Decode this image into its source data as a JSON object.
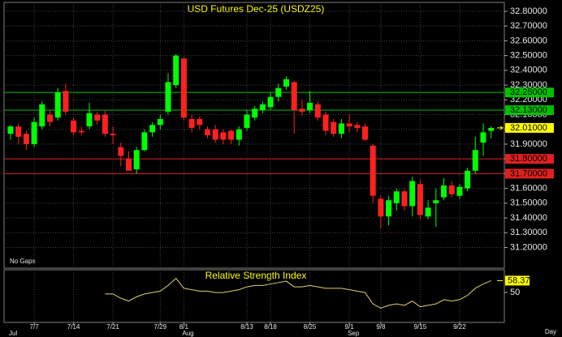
{
  "chart_data": [
    {
      "type": "candlestick",
      "title": "USD Futures Dec-25 (USDZ25)",
      "note": "No Gaps",
      "interval": "Day",
      "categories": [
        null,
        null,
        null,
        "7/7",
        null,
        null,
        null,
        null,
        "7/14",
        null,
        null,
        null,
        null,
        "7/21",
        null,
        null,
        null,
        null,
        null,
        "7/29",
        null,
        null,
        "8/1",
        null,
        null,
        null,
        null,
        null,
        null,
        null,
        "8/13",
        null,
        null,
        "8/18",
        null,
        null,
        null,
        null,
        "8/25",
        null,
        null,
        null,
        null,
        "9/1",
        null,
        null,
        null,
        "9/8",
        null,
        null,
        null,
        null,
        "9/15",
        null,
        null,
        null,
        null,
        "9/22",
        null,
        null,
        null,
        null
      ],
      "months": [
        "Jul",
        null,
        null,
        null,
        null,
        null,
        null,
        null,
        null,
        null,
        null,
        null,
        null,
        null,
        null,
        null,
        null,
        null,
        null,
        null,
        null,
        null,
        "Aug",
        null,
        null,
        null,
        null,
        null,
        null,
        null,
        null,
        null,
        null,
        null,
        null,
        null,
        null,
        null,
        null,
        null,
        null,
        null,
        null,
        "Sep",
        null,
        null,
        null,
        null,
        null,
        null,
        null,
        null,
        null,
        null,
        null,
        null,
        null,
        null,
        null,
        null,
        null,
        null
      ],
      "open": [
        31.97,
        32.02,
        31.97,
        31.9,
        32.02,
        32.1,
        32.08,
        32.26,
        32.06,
        31.99,
        32.02,
        32.1,
        32.1,
        31.97,
        31.88,
        31.8,
        31.73,
        31.86,
        31.98,
        32.03,
        32.12,
        32.3,
        32.48,
        32.07,
        32.07,
        32.0,
        32.0,
        31.98,
        31.99,
        31.93,
        32.01,
        32.08,
        32.13,
        32.15,
        32.22,
        32.29,
        32.32,
        32.14,
        32.13,
        32.17,
        32.1,
        32.05,
        31.97,
        32.04,
        32.03,
        32.02,
        31.89,
        31.53,
        31.41,
        31.5,
        31.58,
        31.48,
        31.63,
        31.41,
        31.5,
        31.54,
        31.62,
        31.55,
        31.6,
        31.72,
        31.91,
        31.99
      ],
      "high": [
        32.03,
        32.04,
        31.99,
        32.08,
        32.19,
        32.13,
        32.28,
        32.31,
        32.08,
        32.02,
        32.18,
        32.12,
        32.13,
        32.02,
        31.91,
        31.85,
        31.88,
        32.0,
        32.05,
        32.1,
        32.38,
        32.51,
        32.49,
        32.1,
        32.09,
        32.02,
        32.03,
        32.0,
        32.0,
        32.02,
        32.13,
        32.16,
        32.19,
        32.25,
        32.31,
        32.36,
        32.33,
        32.2,
        32.26,
        32.19,
        32.12,
        32.07,
        32.07,
        32.1,
        32.05,
        32.04,
        31.9,
        31.55,
        31.55,
        31.6,
        31.6,
        31.68,
        31.66,
        31.52,
        31.6,
        31.67,
        31.65,
        31.63,
        31.74,
        31.95,
        32.04,
        32.02
      ],
      "low": [
        31.93,
        31.9,
        31.86,
        31.88,
        32.0,
        32.02,
        32.06,
        32.1,
        31.96,
        31.96,
        32.0,
        32.03,
        31.95,
        31.9,
        31.75,
        31.72,
        31.7,
        31.85,
        31.95,
        32.0,
        32.1,
        32.28,
        32.06,
        31.98,
        32.0,
        31.94,
        31.91,
        31.9,
        31.9,
        31.89,
        31.99,
        32.06,
        32.11,
        32.13,
        32.19,
        32.27,
        31.97,
        32.09,
        32.11,
        32.06,
        31.96,
        31.95,
        31.94,
        31.98,
        31.98,
        31.92,
        31.5,
        31.33,
        31.35,
        31.45,
        31.45,
        31.41,
        31.39,
        31.39,
        31.34,
        31.52,
        31.54,
        31.53,
        31.58,
        31.7,
        31.82,
        31.94
      ],
      "close": [
        32.02,
        31.95,
        31.9,
        32.05,
        32.17,
        32.05,
        32.25,
        32.12,
        31.98,
        31.98,
        32.11,
        32.06,
        31.97,
        31.96,
        31.82,
        31.72,
        31.86,
        31.98,
        32.03,
        32.07,
        32.32,
        32.5,
        32.08,
        32.01,
        32.03,
        31.96,
        31.93,
        31.93,
        31.93,
        32.0,
        32.1,
        32.14,
        32.17,
        32.22,
        32.28,
        32.34,
        32.13,
        32.12,
        32.18,
        32.08,
        31.99,
        31.97,
        32.04,
        32.02,
        32.01,
        31.93,
        31.55,
        31.41,
        31.52,
        31.58,
        31.48,
        31.65,
        31.42,
        31.47,
        31.52,
        31.62,
        31.56,
        31.61,
        31.72,
        31.86,
        31.98,
        32.01
      ],
      "up_color": "#00ff00",
      "down_color": "#ff2020",
      "ylim": [
        31.06,
        32.86
      ],
      "yticks": [
        {
          "value": 32.8,
          "label": "32.80000"
        },
        {
          "value": 32.7,
          "label": "32.70000"
        },
        {
          "value": 32.6,
          "label": "32.60000"
        },
        {
          "value": 32.5,
          "label": "32.50000"
        },
        {
          "value": 32.4,
          "label": "32.40000"
        },
        {
          "value": 32.3,
          "label": "32.30000"
        },
        {
          "value": 32.2,
          "label": "32.20000"
        },
        {
          "value": 32.1,
          "label": "32.10000"
        },
        {
          "value": 32.0,
          "label": "32.00000"
        },
        {
          "value": 31.9,
          "label": "31.90000"
        },
        {
          "value": 31.8,
          "label": "31.80000"
        },
        {
          "value": 31.7,
          "label": "31.70000"
        },
        {
          "value": 31.6,
          "label": "31.60000"
        },
        {
          "value": 31.5,
          "label": "31.50000"
        },
        {
          "value": 31.4,
          "label": "31.40000"
        },
        {
          "value": 31.3,
          "label": "31.30000"
        },
        {
          "value": 31.2,
          "label": "31.20000"
        }
      ],
      "levels": [
        {
          "value": 32.25,
          "label": "32.25000",
          "color": "#00c000"
        },
        {
          "value": 32.13,
          "label": "32.13000",
          "color": "#00c000"
        },
        {
          "value": 31.8,
          "label": "31.80000",
          "color": "#e02020"
        },
        {
          "value": 31.7,
          "label": "31.70000",
          "color": "#e02020"
        }
      ],
      "last_price": {
        "value": 32.01,
        "label": "32.01000",
        "color": "#ffff00"
      },
      "grid": true
    },
    {
      "type": "line",
      "title": "Relative Strength Index",
      "color": "#e0d070",
      "values": [
        null,
        null,
        null,
        null,
        null,
        null,
        null,
        null,
        null,
        null,
        null,
        null,
        49,
        49,
        46,
        44,
        47,
        49,
        50,
        51,
        55,
        60,
        53,
        52,
        51,
        51,
        50,
        50,
        51,
        52,
        54,
        55,
        55,
        56,
        57,
        58,
        54,
        54,
        55,
        54,
        53,
        53,
        53,
        52,
        51,
        50,
        42,
        39,
        41,
        42,
        41,
        44,
        40,
        41,
        42,
        45,
        44,
        45,
        48,
        53,
        56,
        58.37
      ],
      "ylim": [
        29,
        66
      ],
      "yticks": [
        50
      ],
      "last_color": "#ffff00"
    }
  ]
}
